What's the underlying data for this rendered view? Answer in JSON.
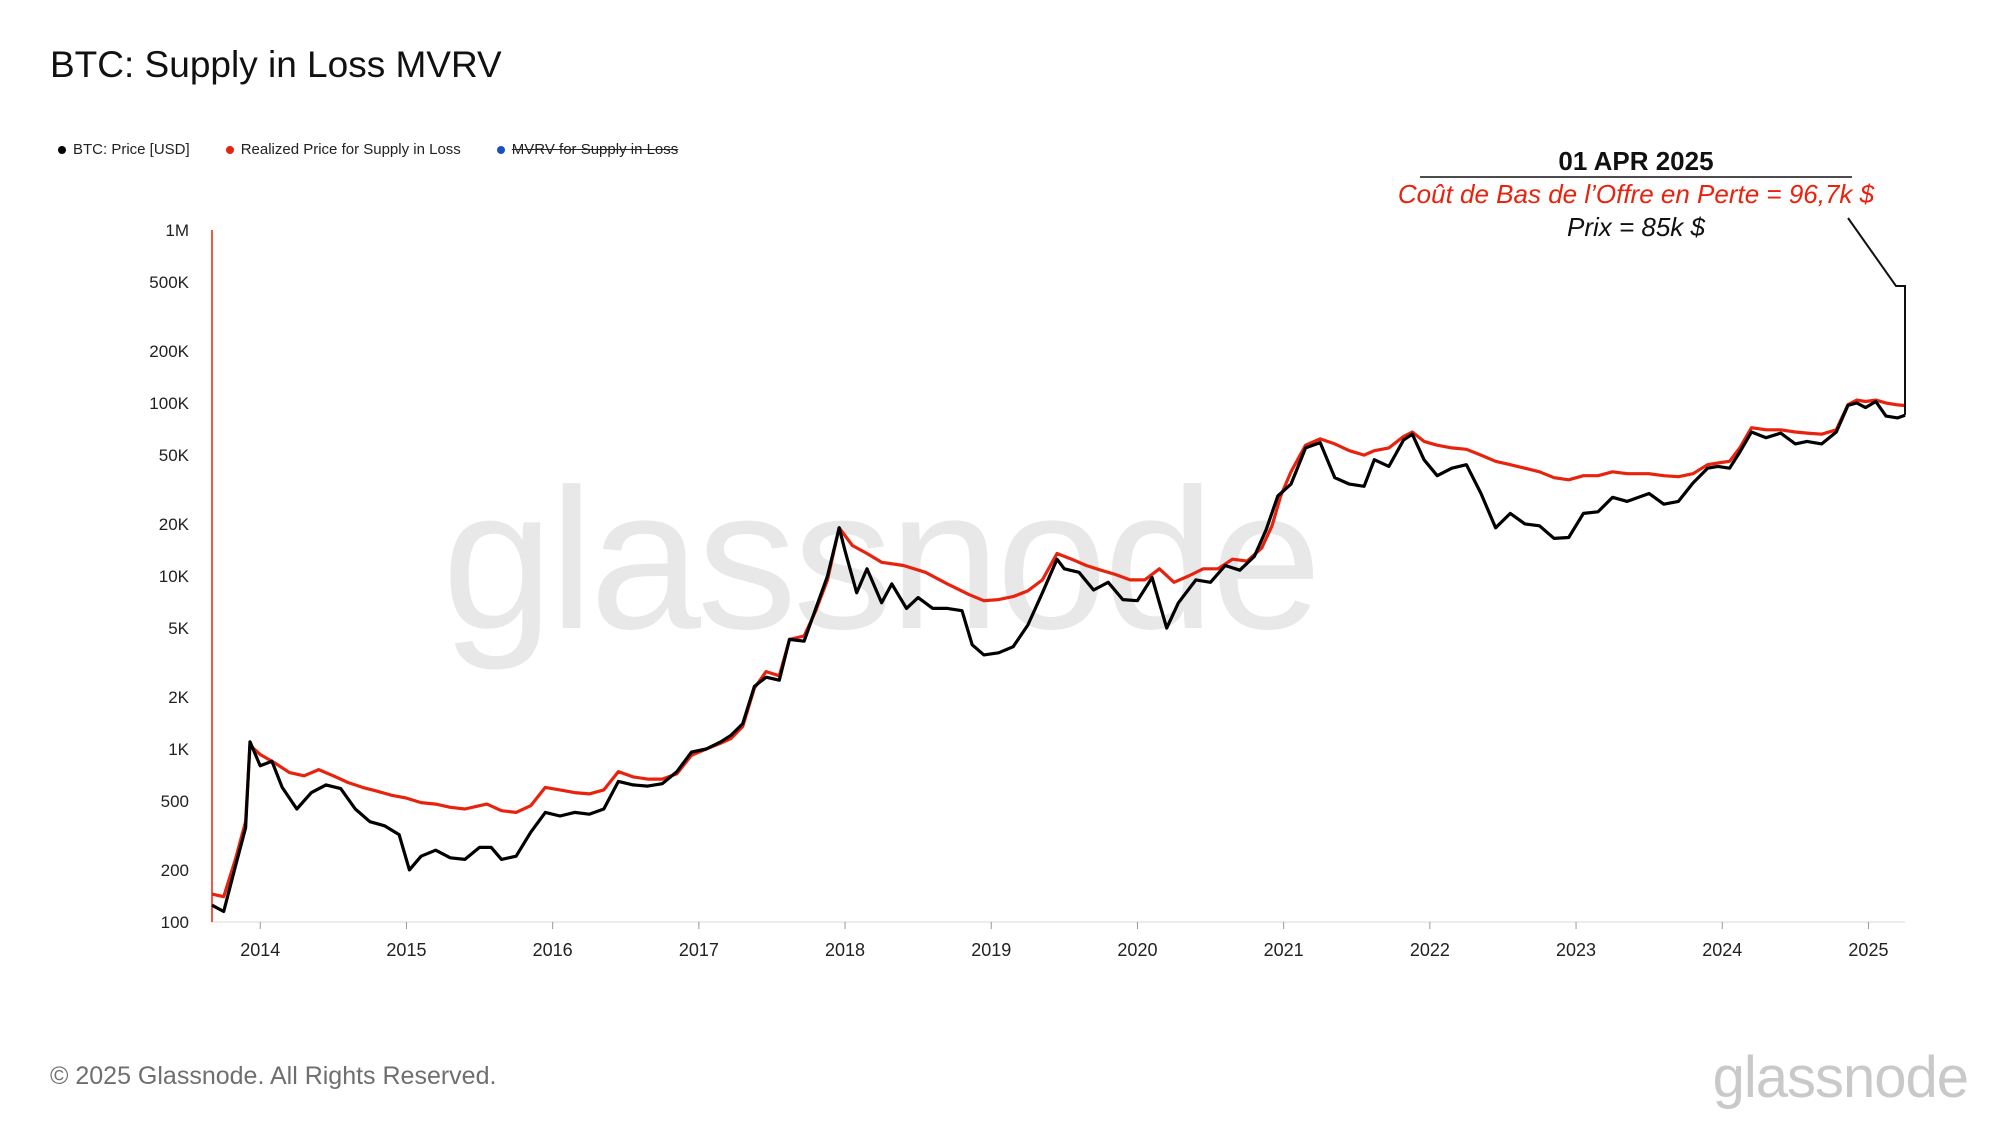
{
  "title": "BTC: Supply in Loss MVRV",
  "legend": [
    {
      "label": "BTC: Price [USD]",
      "color": "#000000",
      "struck": false
    },
    {
      "label": "Realized Price for Supply in Loss",
      "color": "#e8220c",
      "struck": false
    },
    {
      "label": "MVRV for Supply in Loss",
      "color": "#1d4fc4",
      "struck": true
    }
  ],
  "annotation": {
    "date": "01 APR 2025",
    "cost": "Coût de Bas de l’Offre en Perte = 96,7k $",
    "price": "Prix = 85k $",
    "cost_color": "#e8220c"
  },
  "watermark": "glassnode",
  "footer": "© 2025 Glassnode. All Rights Reserved.",
  "brand": "glassnode",
  "chart_data": {
    "type": "line",
    "title": "BTC: Supply in Loss MVRV",
    "xlabel": "",
    "ylabel": "",
    "y_scale": "log",
    "ylim": [
      100,
      1000000
    ],
    "xlim": [
      2013.67,
      2025.25
    ],
    "y_ticks": [
      {
        "value": 100,
        "label": "100"
      },
      {
        "value": 200,
        "label": "200"
      },
      {
        "value": 500,
        "label": "500"
      },
      {
        "value": 1000,
        "label": "1K"
      },
      {
        "value": 2000,
        "label": "2K"
      },
      {
        "value": 5000,
        "label": "5K"
      },
      {
        "value": 10000,
        "label": "10K"
      },
      {
        "value": 20000,
        "label": "20K"
      },
      {
        "value": 50000,
        "label": "50K"
      },
      {
        "value": 100000,
        "label": "100K"
      },
      {
        "value": 200000,
        "label": "200K"
      },
      {
        "value": 500000,
        "label": "500K"
      },
      {
        "value": 1000000,
        "label": "1M"
      }
    ],
    "x_ticks": [
      {
        "value": 2014,
        "label": "2014"
      },
      {
        "value": 2015,
        "label": "2015"
      },
      {
        "value": 2016,
        "label": "2016"
      },
      {
        "value": 2017,
        "label": "2017"
      },
      {
        "value": 2018,
        "label": "2018"
      },
      {
        "value": 2019,
        "label": "2019"
      },
      {
        "value": 2020,
        "label": "2020"
      },
      {
        "value": 2021,
        "label": "2021"
      },
      {
        "value": 2022,
        "label": "2022"
      },
      {
        "value": 2023,
        "label": "2023"
      },
      {
        "value": 2024,
        "label": "2024"
      },
      {
        "value": 2025,
        "label": "2025"
      }
    ],
    "series": [
      {
        "name": "BTC: Price [USD]",
        "color": "#000000",
        "points": [
          [
            2013.67,
            125
          ],
          [
            2013.75,
            115
          ],
          [
            2013.83,
            210
          ],
          [
            2013.9,
            350
          ],
          [
            2013.93,
            1100
          ],
          [
            2014.0,
            800
          ],
          [
            2014.08,
            850
          ],
          [
            2014.15,
            600
          ],
          [
            2014.25,
            450
          ],
          [
            2014.35,
            560
          ],
          [
            2014.45,
            620
          ],
          [
            2014.55,
            590
          ],
          [
            2014.65,
            450
          ],
          [
            2014.75,
            380
          ],
          [
            2014.85,
            360
          ],
          [
            2014.95,
            320
          ],
          [
            2015.02,
            200
          ],
          [
            2015.1,
            240
          ],
          [
            2015.2,
            260
          ],
          [
            2015.3,
            235
          ],
          [
            2015.4,
            230
          ],
          [
            2015.5,
            270
          ],
          [
            2015.58,
            270
          ],
          [
            2015.65,
            230
          ],
          [
            2015.75,
            240
          ],
          [
            2015.85,
            330
          ],
          [
            2015.95,
            430
          ],
          [
            2016.05,
            410
          ],
          [
            2016.15,
            430
          ],
          [
            2016.25,
            420
          ],
          [
            2016.35,
            450
          ],
          [
            2016.45,
            650
          ],
          [
            2016.55,
            620
          ],
          [
            2016.65,
            610
          ],
          [
            2016.75,
            630
          ],
          [
            2016.85,
            740
          ],
          [
            2016.95,
            960
          ],
          [
            2017.05,
            1000
          ],
          [
            2017.15,
            1100
          ],
          [
            2017.22,
            1200
          ],
          [
            2017.3,
            1400
          ],
          [
            2017.38,
            2300
          ],
          [
            2017.46,
            2600
          ],
          [
            2017.55,
            2500
          ],
          [
            2017.62,
            4300
          ],
          [
            2017.72,
            4200
          ],
          [
            2017.8,
            6500
          ],
          [
            2017.88,
            10000
          ],
          [
            2017.96,
            19000
          ],
          [
            2018.0,
            14000
          ],
          [
            2018.08,
            8000
          ],
          [
            2018.15,
            11000
          ],
          [
            2018.25,
            7000
          ],
          [
            2018.32,
            9000
          ],
          [
            2018.42,
            6500
          ],
          [
            2018.5,
            7500
          ],
          [
            2018.6,
            6500
          ],
          [
            2018.7,
            6500
          ],
          [
            2018.8,
            6300
          ],
          [
            2018.87,
            4000
          ],
          [
            2018.95,
            3500
          ],
          [
            2019.05,
            3600
          ],
          [
            2019.15,
            3900
          ],
          [
            2019.25,
            5200
          ],
          [
            2019.35,
            8000
          ],
          [
            2019.45,
            12500
          ],
          [
            2019.5,
            11000
          ],
          [
            2019.6,
            10500
          ],
          [
            2019.7,
            8300
          ],
          [
            2019.8,
            9200
          ],
          [
            2019.9,
            7300
          ],
          [
            2020.0,
            7200
          ],
          [
            2020.1,
            9800
          ],
          [
            2020.2,
            5000
          ],
          [
            2020.28,
            7000
          ],
          [
            2020.4,
            9500
          ],
          [
            2020.5,
            9200
          ],
          [
            2020.6,
            11500
          ],
          [
            2020.7,
            10800
          ],
          [
            2020.8,
            13000
          ],
          [
            2020.88,
            18500
          ],
          [
            2020.96,
            29000
          ],
          [
            2021.05,
            34000
          ],
          [
            2021.15,
            55000
          ],
          [
            2021.25,
            59000
          ],
          [
            2021.35,
            37000
          ],
          [
            2021.45,
            34000
          ],
          [
            2021.55,
            33000
          ],
          [
            2021.62,
            47000
          ],
          [
            2021.72,
            43000
          ],
          [
            2021.82,
            61000
          ],
          [
            2021.88,
            66000
          ],
          [
            2021.96,
            47000
          ],
          [
            2022.05,
            38000
          ],
          [
            2022.15,
            42000
          ],
          [
            2022.25,
            44000
          ],
          [
            2022.35,
            30000
          ],
          [
            2022.45,
            19000
          ],
          [
            2022.55,
            23000
          ],
          [
            2022.65,
            20000
          ],
          [
            2022.75,
            19500
          ],
          [
            2022.85,
            16500
          ],
          [
            2022.95,
            16700
          ],
          [
            2023.05,
            23000
          ],
          [
            2023.15,
            23500
          ],
          [
            2023.25,
            28500
          ],
          [
            2023.35,
            27000
          ],
          [
            2023.5,
            30000
          ],
          [
            2023.6,
            26000
          ],
          [
            2023.7,
            27000
          ],
          [
            2023.8,
            34500
          ],
          [
            2023.9,
            42000
          ],
          [
            2023.97,
            43000
          ],
          [
            2024.05,
            42000
          ],
          [
            2024.12,
            52000
          ],
          [
            2024.2,
            68000
          ],
          [
            2024.3,
            63000
          ],
          [
            2024.4,
            67000
          ],
          [
            2024.5,
            58000
          ],
          [
            2024.58,
            60000
          ],
          [
            2024.68,
            58000
          ],
          [
            2024.78,
            68000
          ],
          [
            2024.86,
            97000
          ],
          [
            2024.92,
            100000
          ],
          [
            2024.98,
            94000
          ],
          [
            2025.05,
            102000
          ],
          [
            2025.12,
            84000
          ],
          [
            2025.2,
            82000
          ],
          [
            2025.25,
            85000
          ]
        ]
      },
      {
        "name": "Realized Price for Supply in Loss",
        "color": "#e8220c",
        "points": [
          [
            2013.67,
            145
          ],
          [
            2013.75,
            140
          ],
          [
            2013.83,
            230
          ],
          [
            2013.9,
            380
          ],
          [
            2013.93,
            1050
          ],
          [
            2014.0,
            930
          ],
          [
            2014.1,
            830
          ],
          [
            2014.2,
            730
          ],
          [
            2014.3,
            700
          ],
          [
            2014.4,
            760
          ],
          [
            2014.5,
            700
          ],
          [
            2014.6,
            640
          ],
          [
            2014.7,
            600
          ],
          [
            2014.8,
            570
          ],
          [
            2014.9,
            540
          ],
          [
            2015.0,
            520
          ],
          [
            2015.1,
            490
          ],
          [
            2015.2,
            480
          ],
          [
            2015.3,
            460
          ],
          [
            2015.4,
            450
          ],
          [
            2015.5,
            470
          ],
          [
            2015.55,
            480
          ],
          [
            2015.65,
            440
          ],
          [
            2015.75,
            430
          ],
          [
            2015.85,
            470
          ],
          [
            2015.95,
            600
          ],
          [
            2016.05,
            580
          ],
          [
            2016.15,
            560
          ],
          [
            2016.25,
            550
          ],
          [
            2016.35,
            580
          ],
          [
            2016.45,
            740
          ],
          [
            2016.55,
            690
          ],
          [
            2016.65,
            670
          ],
          [
            2016.75,
            670
          ],
          [
            2016.85,
            720
          ],
          [
            2016.95,
            920
          ],
          [
            2017.05,
            1000
          ],
          [
            2017.15,
            1080
          ],
          [
            2017.22,
            1150
          ],
          [
            2017.3,
            1350
          ],
          [
            2017.38,
            2250
          ],
          [
            2017.46,
            2800
          ],
          [
            2017.55,
            2650
          ],
          [
            2017.62,
            4300
          ],
          [
            2017.72,
            4500
          ],
          [
            2017.8,
            6300
          ],
          [
            2017.88,
            9500
          ],
          [
            2017.96,
            19000
          ],
          [
            2018.05,
            15000
          ],
          [
            2018.15,
            13500
          ],
          [
            2018.25,
            12000
          ],
          [
            2018.4,
            11500
          ],
          [
            2018.55,
            10500
          ],
          [
            2018.7,
            9000
          ],
          [
            2018.85,
            7800
          ],
          [
            2018.95,
            7200
          ],
          [
            2019.05,
            7300
          ],
          [
            2019.15,
            7600
          ],
          [
            2019.25,
            8200
          ],
          [
            2019.35,
            9500
          ],
          [
            2019.45,
            13500
          ],
          [
            2019.55,
            12500
          ],
          [
            2019.65,
            11500
          ],
          [
            2019.75,
            10800
          ],
          [
            2019.85,
            10200
          ],
          [
            2019.95,
            9500
          ],
          [
            2020.05,
            9500
          ],
          [
            2020.15,
            11000
          ],
          [
            2020.25,
            9200
          ],
          [
            2020.35,
            10000
          ],
          [
            2020.45,
            11000
          ],
          [
            2020.55,
            11000
          ],
          [
            2020.65,
            12500
          ],
          [
            2020.75,
            12200
          ],
          [
            2020.85,
            14500
          ],
          [
            2020.92,
            19500
          ],
          [
            2020.98,
            29000
          ],
          [
            2021.05,
            40000
          ],
          [
            2021.15,
            57000
          ],
          [
            2021.25,
            62000
          ],
          [
            2021.35,
            58000
          ],
          [
            2021.45,
            53000
          ],
          [
            2021.55,
            50000
          ],
          [
            2021.62,
            53000
          ],
          [
            2021.72,
            55000
          ],
          [
            2021.82,
            64000
          ],
          [
            2021.88,
            68000
          ],
          [
            2021.96,
            60000
          ],
          [
            2022.05,
            57000
          ],
          [
            2022.15,
            55000
          ],
          [
            2022.25,
            54000
          ],
          [
            2022.35,
            50000
          ],
          [
            2022.45,
            46000
          ],
          [
            2022.55,
            44000
          ],
          [
            2022.65,
            42000
          ],
          [
            2022.75,
            40000
          ],
          [
            2022.85,
            37000
          ],
          [
            2022.95,
            36000
          ],
          [
            2023.05,
            38000
          ],
          [
            2023.15,
            38000
          ],
          [
            2023.25,
            40000
          ],
          [
            2023.35,
            39000
          ],
          [
            2023.5,
            39000
          ],
          [
            2023.6,
            38000
          ],
          [
            2023.7,
            37500
          ],
          [
            2023.8,
            39000
          ],
          [
            2023.9,
            44000
          ],
          [
            2023.97,
            45000
          ],
          [
            2024.05,
            46000
          ],
          [
            2024.12,
            55000
          ],
          [
            2024.2,
            72000
          ],
          [
            2024.3,
            70000
          ],
          [
            2024.4,
            70000
          ],
          [
            2024.5,
            68000
          ],
          [
            2024.58,
            67000
          ],
          [
            2024.68,
            66000
          ],
          [
            2024.78,
            70000
          ],
          [
            2024.86,
            98000
          ],
          [
            2024.92,
            104000
          ],
          [
            2024.98,
            102000
          ],
          [
            2025.05,
            104000
          ],
          [
            2025.12,
            100000
          ],
          [
            2025.2,
            97500
          ],
          [
            2025.25,
            96700
          ]
        ]
      }
    ],
    "annotations": [
      {
        "date": "01 APR 2025",
        "text": "Coût de Bas de l’Offre en Perte = 96,7k $",
        "value": 96700
      },
      {
        "date": "01 APR 2025",
        "text": "Prix = 85k $",
        "value": 85000
      }
    ]
  }
}
